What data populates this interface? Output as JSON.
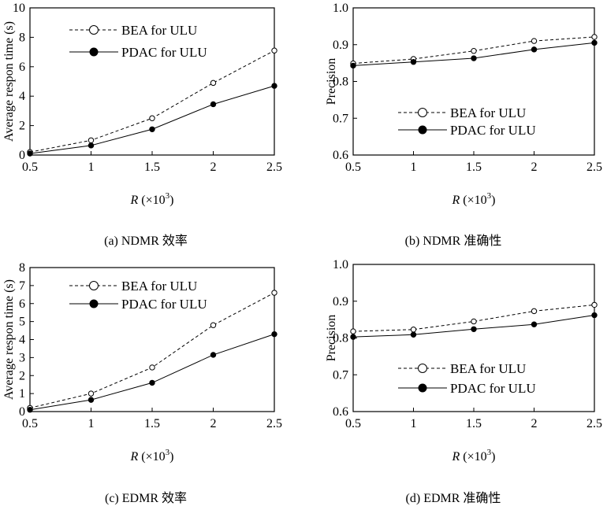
{
  "x_label_var": "R",
  "x_label_unit": "(×10",
  "x_label_exp": "3",
  "x_label_close": ")",
  "legend_marker_colors": {
    "open": "#ffffff",
    "filled": "#000000"
  },
  "chart_data": [
    {
      "type": "line",
      "caption": "(a) NDMR 效率",
      "ylabel": "Average respon time (s)",
      "xlabel": "R (×10³)",
      "x": [
        0.5,
        1,
        1.5,
        2,
        2.5
      ],
      "xticks": [
        "0.5",
        "1",
        "1.5",
        "2",
        "2.5"
      ],
      "ylim": [
        0,
        10
      ],
      "yticks": [
        "0",
        "2",
        "4",
        "6",
        "8",
        "10"
      ],
      "legend_position": "top-left",
      "series": [
        {
          "name": "BEA for ULU",
          "style": "dashed-open",
          "values": [
            0.2,
            1.0,
            2.5,
            4.9,
            7.1
          ]
        },
        {
          "name": "PDAC for ULU",
          "style": "solid-filled",
          "values": [
            0.1,
            0.65,
            1.75,
            3.45,
            4.7
          ]
        }
      ]
    },
    {
      "type": "line",
      "caption": "(b) NDMR 准确性",
      "ylabel": "Precision",
      "xlabel": "R (×10³)",
      "x": [
        0.5,
        1,
        1.5,
        2,
        2.5
      ],
      "xticks": [
        "0.5",
        "1",
        "1.5",
        "2",
        "2.5"
      ],
      "ylim": [
        0.6,
        1.0
      ],
      "yticks": [
        "0.6",
        "0.7",
        "0.8",
        "0.9",
        "1.0"
      ],
      "legend_position": "bottom-right",
      "series": [
        {
          "name": "BEA for ULU",
          "style": "dashed-open",
          "values": [
            0.849,
            0.861,
            0.883,
            0.91,
            0.921
          ]
        },
        {
          "name": "PDAC for ULU",
          "style": "solid-filled",
          "values": [
            0.843,
            0.853,
            0.863,
            0.887,
            0.905
          ]
        }
      ]
    },
    {
      "type": "line",
      "caption": "(c) EDMR 效率",
      "ylabel": "Average respon time (s)",
      "xlabel": "R (×10³)",
      "x": [
        0.5,
        1,
        1.5,
        2,
        2.5
      ],
      "xticks": [
        "0.5",
        "1",
        "1.5",
        "2",
        "2.5"
      ],
      "ylim": [
        0,
        8
      ],
      "yticks": [
        "0",
        "1",
        "2",
        "3",
        "4",
        "5",
        "6",
        "7",
        "8"
      ],
      "legend_position": "top-left",
      "series": [
        {
          "name": "BEA for ULU",
          "style": "dashed-open",
          "values": [
            0.2,
            1.0,
            2.45,
            4.8,
            6.6
          ]
        },
        {
          "name": "PDAC for ULU",
          "style": "solid-filled",
          "values": [
            0.1,
            0.65,
            1.6,
            3.15,
            4.3
          ]
        }
      ]
    },
    {
      "type": "line",
      "caption": "(d) EDMR 准确性",
      "ylabel": "Precision",
      "xlabel": "R (×10³)",
      "x": [
        0.5,
        1,
        1.5,
        2,
        2.5
      ],
      "xticks": [
        "0.5",
        "1",
        "1.5",
        "2",
        "2.5"
      ],
      "ylim": [
        0.6,
        1.0
      ],
      "yticks": [
        "0.6",
        "0.7",
        "0.8",
        "0.9",
        "1.0"
      ],
      "legend_position": "bottom-right",
      "series": [
        {
          "name": "BEA for ULU",
          "style": "dashed-open",
          "values": [
            0.818,
            0.823,
            0.845,
            0.873,
            0.89
          ]
        },
        {
          "name": "PDAC for ULU",
          "style": "solid-filled",
          "values": [
            0.803,
            0.809,
            0.824,
            0.837,
            0.862
          ]
        }
      ]
    }
  ]
}
